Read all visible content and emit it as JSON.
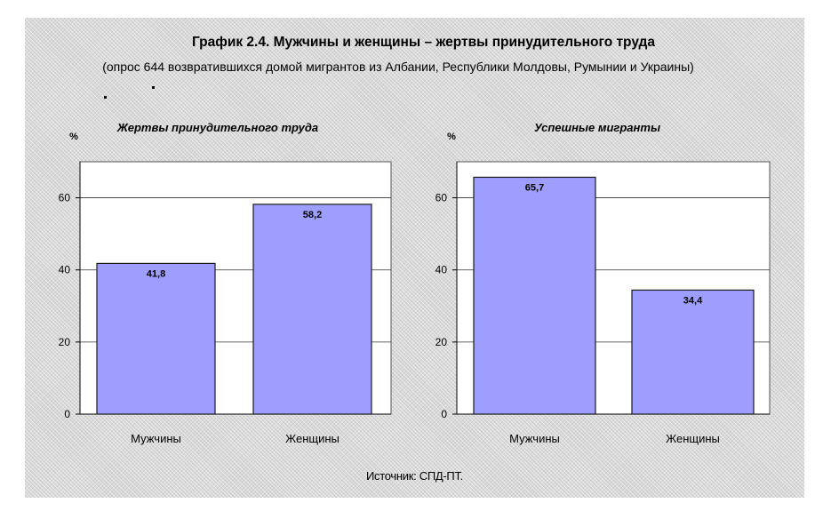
{
  "figure": {
    "title": "График 2.4. Мужчины и женщины – жертвы принудительного труда",
    "subtitle": "(опрос 644 возвратившихся домой мигрантов из Албании, Республики Молдовы, Румынии и Украины)",
    "source": "Источник: СПД-ПТ."
  },
  "colors": {
    "bar_fill": "#9e9eff",
    "bar_stroke": "#1a1a1a",
    "plot_bg": "#ffffff",
    "grid": "#333333",
    "figure_bg": "#d8d8d8"
  },
  "chart_data": [
    {
      "type": "bar",
      "title": "Жертвы принудительного труда",
      "ylabel": "%",
      "categories": [
        "Мужчины",
        "Женщины"
      ],
      "values": [
        41.8,
        58.2
      ],
      "value_labels": [
        "41,8",
        "58,2"
      ],
      "ylim": [
        0,
        70
      ],
      "yticks": [
        0,
        20,
        40,
        60
      ],
      "grid": true
    },
    {
      "type": "bar",
      "title": "Успешные мигранты",
      "ylabel": "%",
      "categories": [
        "Мужчины",
        "Женщины"
      ],
      "values": [
        65.7,
        34.4
      ],
      "value_labels": [
        "65,7",
        "34,4"
      ],
      "ylim": [
        0,
        70
      ],
      "yticks": [
        0,
        20,
        40,
        60
      ],
      "grid": true
    }
  ]
}
